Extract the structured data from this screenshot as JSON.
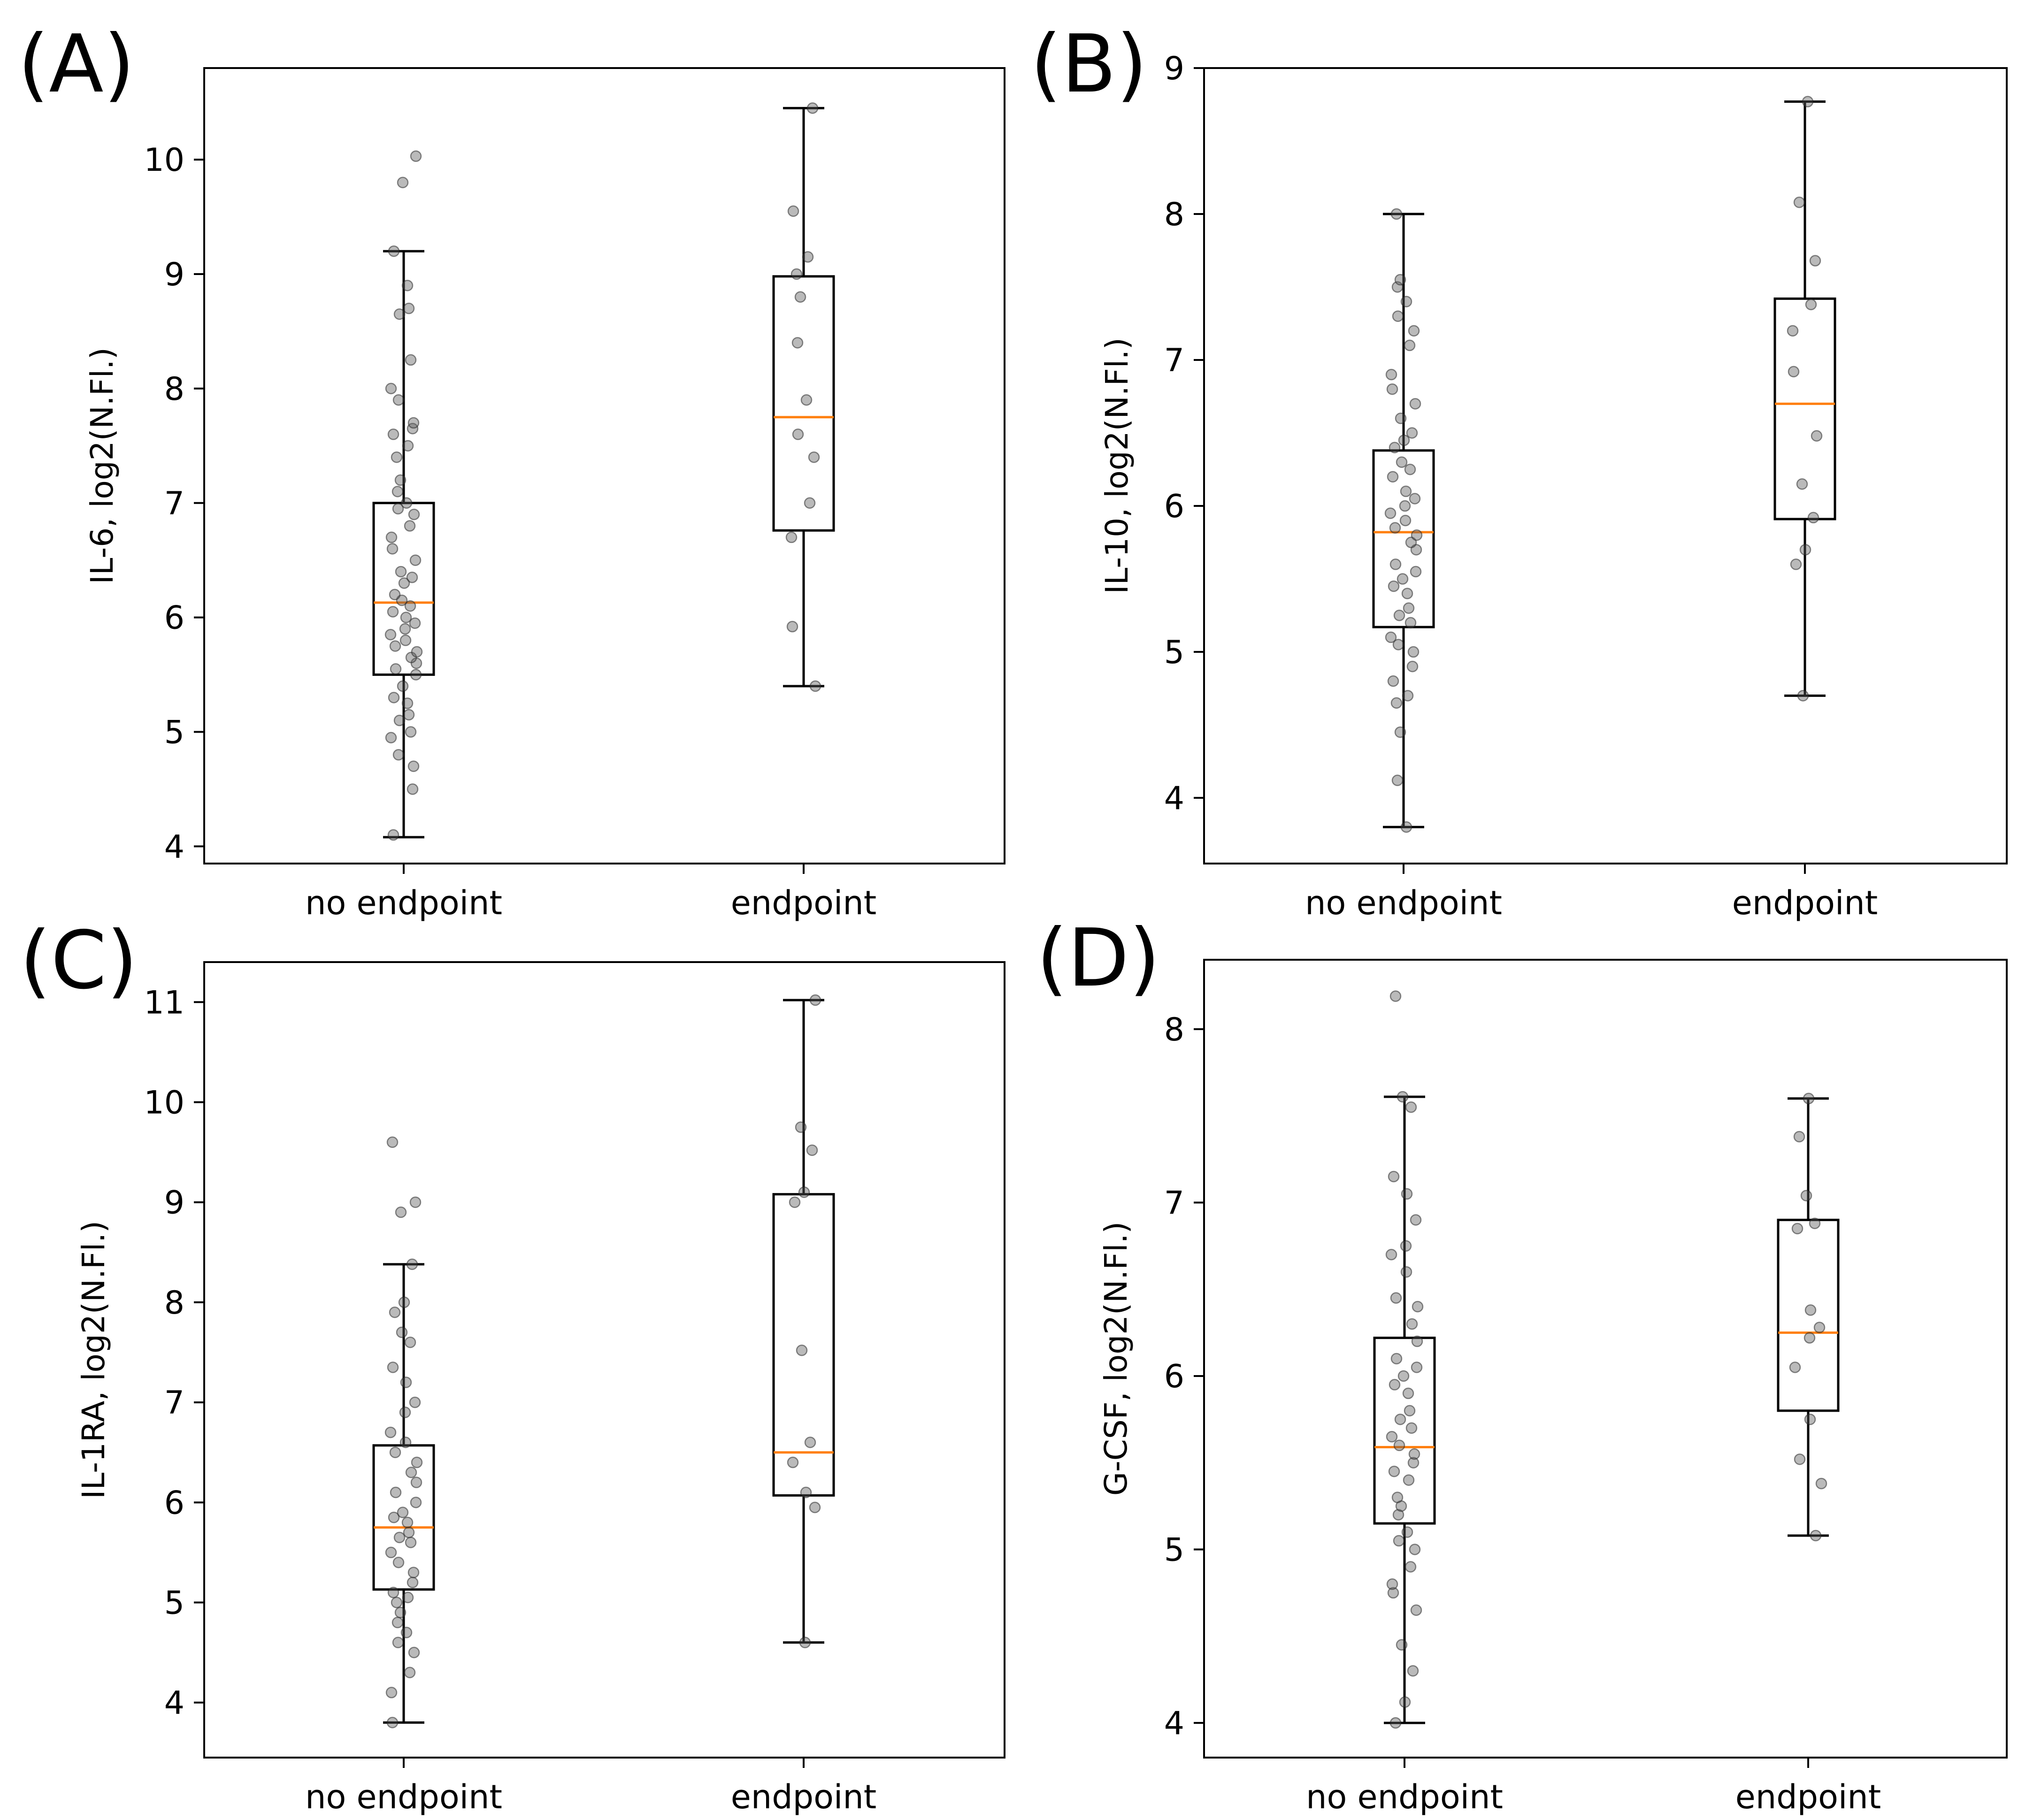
{
  "chart_data": [
    {
      "panel_label": "(A)",
      "type": "box",
      "ylabel": "IL-6, log2(N.Fl.)",
      "categories": [
        "no endpoint",
        "endpoint"
      ],
      "ylim": [
        3.85,
        10.8
      ],
      "yticks": [
        4,
        5,
        6,
        7,
        8,
        9,
        10
      ],
      "boxes": [
        {
          "category": "no endpoint",
          "whisker_low": 4.08,
          "q1": 5.5,
          "median": 6.13,
          "q3": 7.0,
          "whisker_high": 9.2,
          "points": [
            4.1,
            4.5,
            4.7,
            4.8,
            4.95,
            5.0,
            5.1,
            5.15,
            5.25,
            5.3,
            5.4,
            5.5,
            5.55,
            5.6,
            5.65,
            5.7,
            5.75,
            5.8,
            5.85,
            5.9,
            5.95,
            6.0,
            6.05,
            6.1,
            6.15,
            6.2,
            6.3,
            6.35,
            6.4,
            6.5,
            6.6,
            6.7,
            6.8,
            6.9,
            6.95,
            7.0,
            7.1,
            7.2,
            7.4,
            7.5,
            7.6,
            7.65,
            7.7,
            7.9,
            8.0,
            8.25,
            8.65,
            8.7,
            8.9,
            9.2,
            9.8,
            10.03
          ]
        },
        {
          "category": "endpoint",
          "whisker_low": 5.4,
          "q1": 6.76,
          "median": 7.75,
          "q3": 8.98,
          "whisker_high": 10.45,
          "points": [
            5.4,
            5.92,
            6.7,
            7.0,
            7.4,
            7.6,
            7.9,
            8.4,
            8.8,
            9.0,
            9.15,
            9.55,
            10.45
          ]
        }
      ]
    },
    {
      "panel_label": "(B)",
      "type": "box",
      "ylabel": "IL-10, log2(N.Fl.)",
      "categories": [
        "no endpoint",
        "endpoint"
      ],
      "ylim": [
        3.55,
        9.0
      ],
      "yticks": [
        4,
        5,
        6,
        7,
        8,
        9
      ],
      "boxes": [
        {
          "category": "no endpoint",
          "whisker_low": 3.8,
          "q1": 5.17,
          "median": 5.82,
          "q3": 6.38,
          "whisker_high": 8.0,
          "points": [
            3.8,
            4.12,
            4.45,
            4.65,
            4.7,
            4.8,
            4.9,
            5.0,
            5.05,
            5.1,
            5.2,
            5.25,
            5.3,
            5.4,
            5.45,
            5.5,
            5.55,
            5.6,
            5.7,
            5.75,
            5.8,
            5.85,
            5.9,
            5.95,
            6.0,
            6.05,
            6.1,
            6.2,
            6.25,
            6.3,
            6.4,
            6.45,
            6.5,
            6.6,
            6.7,
            6.8,
            6.9,
            7.1,
            7.2,
            7.3,
            7.4,
            7.5,
            7.55,
            8.0
          ]
        },
        {
          "category": "endpoint",
          "whisker_low": 4.7,
          "q1": 5.91,
          "median": 6.7,
          "q3": 7.42,
          "whisker_high": 8.77,
          "points": [
            4.7,
            5.6,
            5.7,
            5.92,
            6.15,
            6.48,
            6.92,
            7.2,
            7.38,
            7.68,
            8.08,
            8.77
          ]
        }
      ]
    },
    {
      "panel_label": "(C)",
      "type": "box",
      "ylabel": "IL-1RA, log2(N.Fl.)",
      "categories": [
        "no endpoint",
        "endpoint"
      ],
      "ylim": [
        3.45,
        11.4
      ],
      "yticks": [
        4,
        5,
        6,
        7,
        8,
        9,
        10,
        11
      ],
      "boxes": [
        {
          "category": "no endpoint",
          "whisker_low": 3.8,
          "q1": 5.13,
          "median": 5.75,
          "q3": 6.57,
          "whisker_high": 8.38,
          "points": [
            3.8,
            4.1,
            4.3,
            4.5,
            4.6,
            4.7,
            4.8,
            4.9,
            5.0,
            5.05,
            5.1,
            5.2,
            5.3,
            5.4,
            5.5,
            5.6,
            5.65,
            5.7,
            5.8,
            5.85,
            5.9,
            6.0,
            6.1,
            6.2,
            6.3,
            6.4,
            6.5,
            6.6,
            6.7,
            6.9,
            7.0,
            7.2,
            7.35,
            7.6,
            7.7,
            7.9,
            8.0,
            8.38,
            8.9,
            9.0,
            9.6
          ]
        },
        {
          "category": "endpoint",
          "whisker_low": 4.6,
          "q1": 6.07,
          "median": 6.5,
          "q3": 9.08,
          "whisker_high": 11.02,
          "points": [
            4.6,
            5.95,
            6.1,
            6.4,
            6.6,
            7.52,
            9.0,
            9.1,
            9.52,
            9.75,
            11.02
          ]
        }
      ]
    },
    {
      "panel_label": "(D)",
      "type": "box",
      "ylabel": "G-CSF, log2(N.Fl.)",
      "categories": [
        "no endpoint",
        "endpoint"
      ],
      "ylim": [
        3.8,
        8.4
      ],
      "yticks": [
        4,
        5,
        6,
        7,
        8
      ],
      "boxes": [
        {
          "category": "no endpoint",
          "whisker_low": 4.0,
          "q1": 5.15,
          "median": 5.59,
          "q3": 6.22,
          "whisker_high": 7.61,
          "points": [
            4.0,
            4.12,
            4.3,
            4.45,
            4.65,
            4.75,
            4.8,
            4.9,
            5.0,
            5.05,
            5.1,
            5.2,
            5.25,
            5.3,
            5.4,
            5.45,
            5.5,
            5.55,
            5.6,
            5.65,
            5.7,
            5.75,
            5.8,
            5.9,
            5.95,
            6.0,
            6.05,
            6.1,
            6.2,
            6.3,
            6.4,
            6.45,
            6.6,
            6.7,
            6.75,
            6.9,
            7.05,
            7.15,
            7.55,
            7.61,
            8.19
          ]
        },
        {
          "category": "endpoint",
          "whisker_low": 5.08,
          "q1": 5.8,
          "median": 6.25,
          "q3": 6.9,
          "whisker_high": 7.6,
          "points": [
            5.08,
            5.38,
            5.52,
            5.75,
            6.05,
            6.22,
            6.28,
            6.38,
            6.85,
            6.88,
            7.04,
            7.38,
            7.6
          ]
        }
      ]
    }
  ]
}
